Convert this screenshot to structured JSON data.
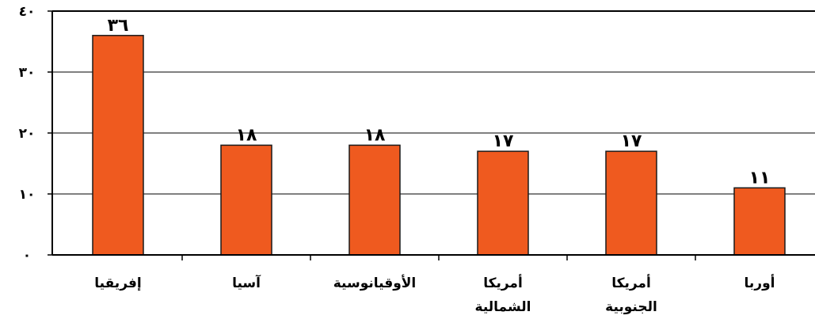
{
  "chart_data": {
    "type": "bar",
    "categories": [
      [
        "إفريقيا"
      ],
      [
        "آسيا"
      ],
      [
        "الأوقيانوسية"
      ],
      [
        "أمريكا",
        "الشمالية"
      ],
      [
        "أمريكا",
        "الجنوبية"
      ],
      [
        "أوربا"
      ]
    ],
    "values": [
      36,
      18,
      18,
      17,
      17,
      11
    ],
    "value_labels": [
      "٣٦",
      "١٨",
      "١٨",
      "١٧",
      "١٧",
      "١١"
    ],
    "ylim": [
      0,
      40
    ],
    "yticks": [
      0,
      10,
      20,
      30,
      40
    ],
    "ytick_labels": [
      "٠",
      "١٠",
      "٢٠",
      "٣٠",
      "٤٠"
    ],
    "grid": true,
    "bar_color": "#EF5A1F",
    "bar_edge_color": "#1a1a1a"
  }
}
